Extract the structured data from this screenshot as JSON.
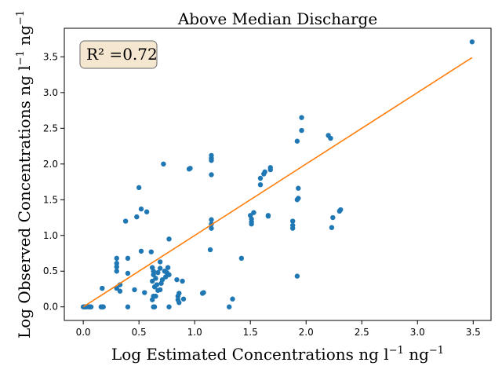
{
  "chart_data": {
    "type": "scatter",
    "title": "Above Median Discharge",
    "xlabel": "Log Estimated Concentrations ng l",
    "xlabel_sup1": "−1",
    "xlabel_mid": " ng",
    "xlabel_sup2": "−1",
    "ylabel": "Log Observed Concentrations ng l",
    "ylabel_sup1": "−1",
    "ylabel_mid": " ng",
    "ylabel_sup2": "−1",
    "annotation": "R² =0.72",
    "xlim": [
      -0.17,
      3.66
    ],
    "ylim": [
      -0.19,
      3.9
    ],
    "xticks": [
      0.0,
      0.5,
      1.0,
      1.5,
      2.0,
      2.5,
      3.0,
      3.5
    ],
    "xtick_labels": [
      "0.0",
      "0.5",
      "1.0",
      "1.5",
      "2.0",
      "2.5",
      "3.0",
      "3.5"
    ],
    "yticks": [
      0.0,
      0.5,
      1.0,
      1.5,
      2.0,
      2.5,
      3.0,
      3.5
    ],
    "ytick_labels": [
      "0.0",
      "0.5",
      "1.0",
      "1.5",
      "2.0",
      "2.5",
      "3.0",
      "3.5"
    ],
    "grid": false,
    "colors": {
      "points": "#1f77b4",
      "fit_line": "#ff7f0e",
      "annotation_fill": "#f5e6cf",
      "annotation_edge": "#808080"
    },
    "fit_line": {
      "x": [
        0.0,
        3.49
      ],
      "y": [
        0.0,
        3.49
      ]
    },
    "points": [
      [
        0.0,
        0.0
      ],
      [
        0.01,
        0.0
      ],
      [
        0.02,
        0.0
      ],
      [
        0.03,
        0.0
      ],
      [
        0.05,
        0.0
      ],
      [
        0.06,
        0.0
      ],
      [
        0.07,
        0.0
      ],
      [
        0.16,
        0.0
      ],
      [
        0.17,
        0.0
      ],
      [
        0.18,
        0.0
      ],
      [
        0.4,
        0.0
      ],
      [
        0.63,
        0.0
      ],
      [
        0.64,
        0.0
      ],
      [
        0.77,
        0.0
      ],
      [
        1.31,
        0.0
      ],
      [
        0.86,
        0.06
      ],
      [
        0.62,
        0.1
      ],
      [
        0.85,
        0.1
      ],
      [
        0.9,
        0.11
      ],
      [
        1.34,
        0.11
      ],
      [
        0.63,
        0.15
      ],
      [
        0.65,
        0.15
      ],
      [
        0.85,
        0.15
      ],
      [
        0.86,
        0.19
      ],
      [
        1.07,
        0.19
      ],
      [
        1.08,
        0.2
      ],
      [
        0.55,
        0.2
      ],
      [
        0.33,
        0.22
      ],
      [
        0.46,
        0.24
      ],
      [
        0.67,
        0.23
      ],
      [
        0.69,
        0.24
      ],
      [
        0.3,
        0.26
      ],
      [
        0.17,
        0.26
      ],
      [
        0.64,
        0.28
      ],
      [
        0.66,
        0.31
      ],
      [
        0.7,
        0.33
      ],
      [
        0.33,
        0.31
      ],
      [
        0.62,
        0.36
      ],
      [
        0.65,
        0.4
      ],
      [
        0.71,
        0.38
      ],
      [
        0.89,
        0.36
      ],
      [
        0.84,
        0.38
      ],
      [
        0.74,
        0.42
      ],
      [
        0.77,
        0.45
      ],
      [
        0.4,
        0.47
      ],
      [
        0.63,
        0.45
      ],
      [
        0.67,
        0.48
      ],
      [
        0.73,
        0.5
      ],
      [
        0.75,
        0.48
      ],
      [
        0.3,
        0.5
      ],
      [
        0.63,
        0.5
      ],
      [
        0.69,
        0.54
      ],
      [
        0.62,
        0.55
      ],
      [
        0.76,
        0.55
      ],
      [
        0.3,
        0.56
      ],
      [
        0.3,
        0.61
      ],
      [
        0.69,
        0.63
      ],
      [
        0.3,
        0.68
      ],
      [
        0.4,
        0.68
      ],
      [
        1.42,
        0.68
      ],
      [
        0.52,
        0.78
      ],
      [
        0.61,
        0.77
      ],
      [
        1.14,
        0.8
      ],
      [
        0.77,
        0.95
      ],
      [
        1.15,
        1.1
      ],
      [
        1.15,
        1.16
      ],
      [
        1.15,
        1.22
      ],
      [
        0.38,
        1.2
      ],
      [
        0.48,
        1.26
      ],
      [
        0.52,
        1.37
      ],
      [
        0.57,
        1.33
      ],
      [
        1.51,
        1.16
      ],
      [
        1.51,
        1.19
      ],
      [
        1.51,
        1.23
      ],
      [
        1.5,
        1.28
      ],
      [
        1.53,
        1.32
      ],
      [
        1.66,
        1.27
      ],
      [
        1.66,
        1.28
      ],
      [
        1.88,
        1.1
      ],
      [
        1.88,
        1.14
      ],
      [
        1.88,
        1.2
      ],
      [
        1.92,
        0.43
      ],
      [
        1.92,
        1.5
      ],
      [
        1.93,
        1.52
      ],
      [
        1.93,
        1.66
      ],
      [
        2.23,
        1.11
      ],
      [
        2.24,
        1.25
      ],
      [
        2.3,
        1.34
      ],
      [
        2.31,
        1.36
      ],
      [
        0.5,
        1.67
      ],
      [
        1.59,
        1.71
      ],
      [
        1.59,
        1.8
      ],
      [
        1.62,
        1.86
      ],
      [
        1.63,
        1.89
      ],
      [
        1.68,
        1.92
      ],
      [
        1.68,
        1.95
      ],
      [
        0.72,
        2.0
      ],
      [
        0.95,
        1.93
      ],
      [
        0.96,
        1.94
      ],
      [
        1.15,
        1.85
      ],
      [
        1.15,
        2.05
      ],
      [
        1.15,
        2.08
      ],
      [
        1.15,
        2.12
      ],
      [
        1.92,
        2.32
      ],
      [
        1.96,
        2.47
      ],
      [
        1.96,
        2.65
      ],
      [
        2.2,
        2.4
      ],
      [
        2.22,
        2.36
      ],
      [
        3.49,
        3.71
      ]
    ]
  }
}
